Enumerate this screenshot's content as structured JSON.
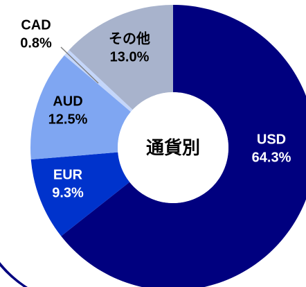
{
  "chart_data": {
    "type": "donut",
    "title": "通貨別",
    "categories": [
      "USD",
      "EUR",
      "AUD",
      "CAD",
      "その他"
    ],
    "values": [
      64.3,
      9.3,
      12.5,
      0.8,
      13.0
    ],
    "value_labels": [
      "64.3%",
      "9.3%",
      "12.5%",
      "0.8%",
      "13.0%"
    ],
    "colors": [
      "#00007f",
      "#0033cc",
      "#7fa6f2",
      "#c4d6fa",
      "#a8b3cc"
    ]
  }
}
